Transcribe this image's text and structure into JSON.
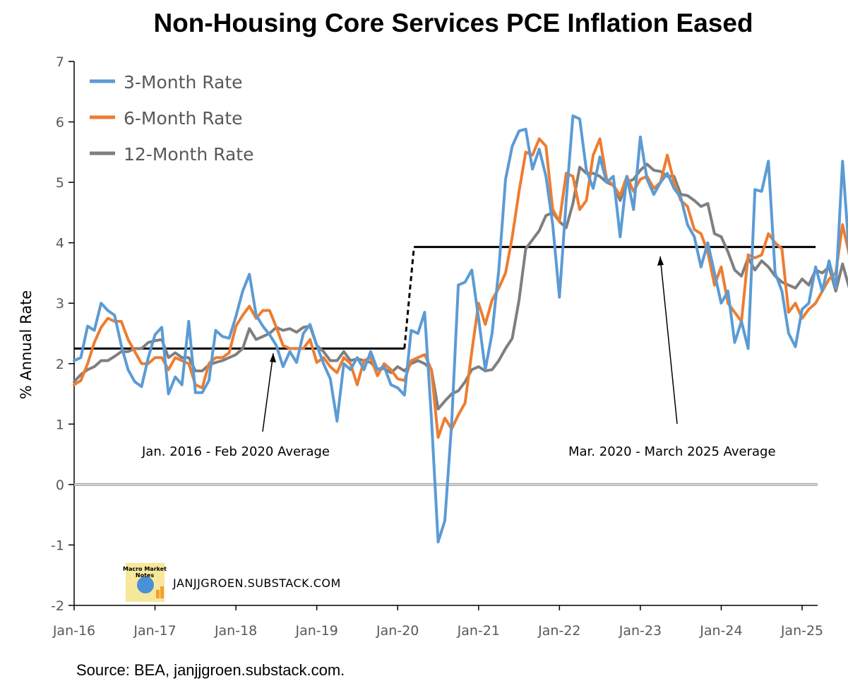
{
  "chart_data": {
    "type": "line",
    "title": "Non-Housing Core Services PCE Inflation Eased",
    "ylabel": "% Annual Rate",
    "xlabel": "",
    "ylim": [
      -2,
      7
    ],
    "y_ticks": [
      "7",
      "6",
      "5",
      "4",
      "3",
      "2",
      "1",
      "0",
      "-1",
      "-2"
    ],
    "x_ticks": [
      "Jan-16",
      "Jan-17",
      "Jan-18",
      "Jan-19",
      "Jan-20",
      "Jan-21",
      "Jan-22",
      "Jan-23",
      "Jan-24",
      "Jan-25"
    ],
    "x_start": "Jan-16",
    "legend_position": "top-left",
    "series": [
      {
        "name": "3-Month Rate",
        "color": "#5b9bd5",
        "values": [
          2.05,
          2.1,
          2.62,
          2.55,
          3.0,
          2.88,
          2.8,
          2.3,
          1.9,
          1.7,
          1.62,
          2.1,
          2.48,
          2.6,
          1.5,
          1.78,
          1.65,
          2.7,
          1.52,
          1.52,
          1.72,
          2.55,
          2.45,
          2.42,
          2.78,
          3.2,
          3.48,
          2.8,
          2.62,
          2.48,
          2.3,
          1.95,
          2.2,
          2.02,
          2.5,
          2.65,
          2.3,
          2.0,
          1.75,
          1.05,
          2.0,
          1.9,
          2.1,
          1.9,
          2.2,
          1.9,
          1.95,
          1.65,
          1.6,
          1.48,
          2.55,
          2.5,
          2.85,
          1.1,
          -0.95,
          -0.6,
          1.0,
          3.3,
          3.35,
          3.55,
          2.75,
          1.9,
          2.5,
          3.55,
          5.05,
          5.6,
          5.85,
          5.88,
          5.22,
          5.55,
          5.1,
          4.3,
          3.1,
          4.7,
          6.1,
          6.05,
          5.2,
          4.9,
          5.42,
          5.0,
          5.1,
          4.1,
          5.1,
          4.55,
          5.75,
          5.05,
          4.8,
          5.0,
          5.15,
          4.9,
          4.75,
          4.3,
          4.1,
          3.6,
          4.0,
          3.5,
          3.0,
          3.2,
          2.35,
          2.7,
          2.25,
          4.88,
          4.85,
          5.35,
          3.5,
          3.2,
          2.5,
          2.28,
          2.9,
          3.0,
          3.6,
          3.2,
          3.7,
          3.25,
          5.35,
          3.8
        ],
        "valuesNote": ""
      },
      {
        "name": "6-Month Rate",
        "color": "#ed7d31",
        "values": [
          1.65,
          1.72,
          2.0,
          2.35,
          2.6,
          2.75,
          2.7,
          2.7,
          2.4,
          2.2,
          2.0,
          2.0,
          2.1,
          2.1,
          1.9,
          2.1,
          2.05,
          2.0,
          1.65,
          1.6,
          2.0,
          2.1,
          2.1,
          2.18,
          2.62,
          2.8,
          2.95,
          2.75,
          2.88,
          2.88,
          2.6,
          2.3,
          2.25,
          2.25,
          2.25,
          2.4,
          2.02,
          2.1,
          1.95,
          1.85,
          2.1,
          2.0,
          1.65,
          2.05,
          2.1,
          1.8,
          2.0,
          1.9,
          1.75,
          1.72,
          2.05,
          2.1,
          2.15,
          1.9,
          0.78,
          1.1,
          0.92,
          1.15,
          1.35,
          2.2,
          3.0,
          2.65,
          3.05,
          3.25,
          3.5,
          4.1,
          4.85,
          5.5,
          5.45,
          5.72,
          5.6,
          4.55,
          4.35,
          5.15,
          5.1,
          4.55,
          4.7,
          5.45,
          5.72,
          5.05,
          4.95,
          4.78,
          5.1,
          4.85,
          5.05,
          5.1,
          4.9,
          5.0,
          5.45,
          5.0,
          4.7,
          4.6,
          4.22,
          4.15,
          3.85,
          3.3,
          3.6,
          3.0,
          2.85,
          2.7,
          3.8,
          3.75,
          3.8,
          4.15,
          4.0,
          3.9,
          2.85,
          3.0,
          2.75,
          2.9,
          3.0,
          3.2,
          3.4,
          3.5,
          4.3,
          3.8
        ]
      },
      {
        "name": "12-Month Rate",
        "color": "#7f7f7f",
        "values": [
          1.7,
          1.82,
          1.9,
          1.95,
          2.05,
          2.05,
          2.12,
          2.2,
          2.2,
          2.25,
          2.25,
          2.35,
          2.38,
          2.4,
          2.1,
          2.18,
          2.1,
          2.1,
          1.88,
          1.88,
          1.98,
          2.02,
          2.05,
          2.1,
          2.15,
          2.25,
          2.58,
          2.4,
          2.45,
          2.5,
          2.6,
          2.55,
          2.58,
          2.52,
          2.6,
          2.62,
          2.3,
          2.2,
          2.05,
          2.05,
          2.2,
          2.05,
          2.08,
          2.05,
          2.02,
          1.9,
          1.92,
          1.85,
          1.95,
          1.88,
          2.0,
          2.05,
          2.0,
          1.9,
          1.25,
          1.38,
          1.5,
          1.55,
          1.7,
          1.9,
          1.95,
          1.88,
          1.9,
          2.05,
          2.25,
          2.42,
          3.05,
          3.9,
          4.05,
          4.2,
          4.45,
          4.5,
          4.35,
          4.25,
          4.65,
          5.25,
          5.15,
          5.15,
          5.1,
          5.0,
          4.95,
          4.7,
          5.0,
          5.05,
          5.2,
          5.3,
          5.2,
          5.18,
          5.1,
          5.1,
          4.8,
          4.78,
          4.7,
          4.6,
          4.65,
          4.15,
          4.1,
          3.85,
          3.55,
          3.45,
          3.75,
          3.55,
          3.7,
          3.6,
          3.45,
          3.35,
          3.3,
          3.25,
          3.4,
          3.3,
          3.55,
          3.5,
          3.6,
          3.2,
          3.65,
          3.25
        ]
      }
    ],
    "averages": [
      {
        "from": 0,
        "to": 49,
        "value": 2.25
      },
      {
        "from": 50,
        "to": 110,
        "value": 3.93
      }
    ],
    "zero_line_color": "#a6a6a6",
    "average_line_color": "#000000",
    "annotations": [
      {
        "text": "Jan. 2016 - Feb 2020 Average"
      },
      {
        "text": "Mar. 2020 - March 2025 Average"
      }
    ]
  },
  "watermark": {
    "logo_text": "Macro Market Notes",
    "site": "JANJJGROEN.SUBSTACK.COM"
  },
  "source": "Source: BEA, janjjgroen.substack.com."
}
